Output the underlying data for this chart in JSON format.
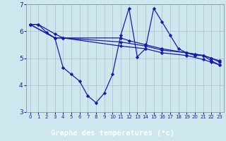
{
  "background_color": "#cce8ee",
  "plot_bg_color": "#cce8ee",
  "footer_color": "#2222aa",
  "line_color": "#1a1aaa",
  "title": "Graphe des températures (°c)",
  "xlim": [
    -0.5,
    23.5
  ],
  "ylim": [
    3,
    7
  ],
  "yticks": [
    3,
    4,
    5,
    6,
    7
  ],
  "xticks": [
    0,
    1,
    2,
    3,
    4,
    5,
    6,
    7,
    8,
    9,
    10,
    11,
    12,
    13,
    14,
    15,
    16,
    17,
    18,
    19,
    20,
    21,
    22,
    23
  ],
  "curve1_x": [
    0,
    1,
    2,
    3,
    4,
    5,
    6,
    7,
    8,
    9,
    10,
    11,
    12,
    13,
    14,
    15,
    16,
    17,
    18,
    19,
    20,
    21,
    22,
    23
  ],
  "curve1_y": [
    6.25,
    6.25,
    5.95,
    5.75,
    4.65,
    4.4,
    4.15,
    3.6,
    3.35,
    3.7,
    4.4,
    5.85,
    6.85,
    5.05,
    5.35,
    6.85,
    6.35,
    5.85,
    5.35,
    5.2,
    5.1,
    5.1,
    4.9,
    4.75
  ],
  "curve2_x": [
    0,
    1,
    3,
    4,
    11,
    12,
    14,
    16,
    19,
    20,
    21,
    22,
    23
  ],
  "curve2_y": [
    6.25,
    6.25,
    5.9,
    5.75,
    5.75,
    5.65,
    5.5,
    5.35,
    5.2,
    5.15,
    5.1,
    5.0,
    4.9
  ],
  "curve3_x": [
    0,
    3,
    4,
    11,
    14,
    16,
    19,
    21,
    22,
    23
  ],
  "curve3_y": [
    6.25,
    5.75,
    5.75,
    5.6,
    5.45,
    5.3,
    5.2,
    5.1,
    5.0,
    4.85
  ],
  "curve4_x": [
    0,
    3,
    4,
    11,
    14,
    16,
    19,
    21,
    22,
    23
  ],
  "curve4_y": [
    6.25,
    5.75,
    5.75,
    5.45,
    5.35,
    5.2,
    5.1,
    4.95,
    4.85,
    4.75
  ]
}
